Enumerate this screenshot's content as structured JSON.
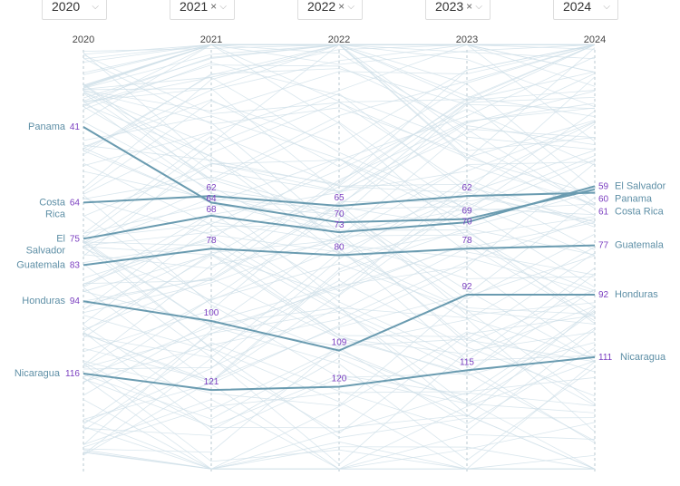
{
  "selectors": [
    {
      "label": "2020",
      "removable": false
    },
    {
      "label": "2021",
      "removable": true
    },
    {
      "label": "2022",
      "removable": true
    },
    {
      "label": "2023",
      "removable": true
    },
    {
      "label": "2024",
      "removable": false
    }
  ],
  "remove_glyph": "×",
  "chart_data": {
    "type": "line",
    "subtype": "parallel-coordinates rank chart",
    "x": [
      "2020",
      "2021",
      "2022",
      "2023",
      "2024"
    ],
    "ylim": [
      15,
      146
    ],
    "y_inverted": true,
    "colors": {
      "highlight": "#6a9bb0",
      "background": "#cfe0e8",
      "value_label": "#7b3fc0",
      "name_label": "#5e8fa6"
    },
    "series": [
      {
        "name": "Panama",
        "values": [
          41,
          64,
          70,
          69,
          60
        ]
      },
      {
        "name": "Costa Rica",
        "values": [
          64,
          62,
          65,
          62,
          61
        ]
      },
      {
        "name": "El Salvador",
        "values": [
          75,
          68,
          73,
          70,
          59
        ]
      },
      {
        "name": "Guatemala",
        "values": [
          83,
          78,
          80,
          78,
          77
        ]
      },
      {
        "name": "Honduras",
        "values": [
          94,
          100,
          109,
          92,
          92
        ]
      },
      {
        "name": "Nicaragua",
        "values": [
          116,
          121,
          120,
          115,
          111
        ]
      }
    ]
  }
}
